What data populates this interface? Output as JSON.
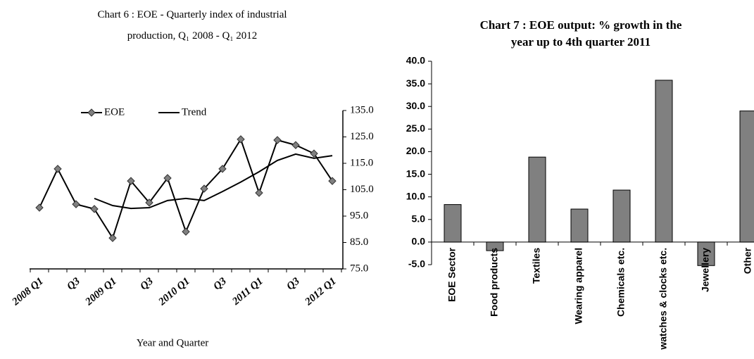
{
  "chart_data": [
    {
      "type": "line",
      "title": "Chart 6 : EOE - Quarterly index of industrial production, Q₁ 2008 - Q₁ 2012",
      "x_label": "Year and Quarter",
      "categories": [
        "2008 Q1",
        null,
        "Q3",
        null,
        "2009 Q1",
        null,
        "Q3",
        null,
        "2010 Q1",
        null,
        "Q3",
        null,
        "2011 Q1",
        null,
        "Q3",
        null,
        "2012 Q1"
      ],
      "series": [
        {
          "name": "EOE",
          "color": "#000000",
          "marker": "diamond",
          "values": [
            98.2,
            112.9,
            99.5,
            97.7,
            86.7,
            108.3,
            100.1,
            109.4,
            89.1,
            105.4,
            112.9,
            124.1,
            103.8,
            123.8,
            121.9,
            118.7,
            108.3
          ]
        },
        {
          "name": "Trend",
          "color": "#000000",
          "values": [
            null,
            null,
            null,
            101.7,
            99.0,
            97.9,
            98.2,
            100.9,
            101.7,
            100.9,
            104.3,
            107.9,
            111.8,
            116.1,
            118.5,
            116.9,
            117.9
          ]
        }
      ],
      "ylim": [
        75,
        135
      ],
      "yticks": [
        {
          "value": 75,
          "label": "75.0"
        },
        {
          "value": 85,
          "label": "85.0"
        },
        {
          "value": 95,
          "label": "95.0"
        },
        {
          "value": 105,
          "label": "105.0"
        },
        {
          "value": 115,
          "label": "115.0"
        },
        {
          "value": 125,
          "label": "125.0"
        },
        {
          "value": 135,
          "label": "135.0"
        }
      ],
      "y_axis_side": "right",
      "legend": "upper left",
      "grid": false
    },
    {
      "type": "bar",
      "title": "Chart 7 : EOE output: % growth in the year up to 4th quarter 2011",
      "categories": [
        "EOE Sector",
        "Food products",
        "Textiles",
        "Wearing apparel",
        "Chemicals etc.",
        "watches & clocks etc.",
        "Jewellery",
        "Other"
      ],
      "values": [
        8.3,
        -1.9,
        18.8,
        7.3,
        11.5,
        35.8,
        -5.2,
        29.0
      ],
      "color": "#808080",
      "ylim": [
        -5,
        40
      ],
      "yticks": [
        {
          "value": -5,
          "label": "-5.0"
        },
        {
          "value": 0,
          "label": "0.0"
        },
        {
          "value": 5,
          "label": "5.0"
        },
        {
          "value": 10,
          "label": "10.0"
        },
        {
          "value": 15,
          "label": "15.0"
        },
        {
          "value": 20,
          "label": "20.0"
        },
        {
          "value": 25,
          "label": "25.0"
        },
        {
          "value": 30,
          "label": "30.0"
        },
        {
          "value": 35,
          "label": "35.0"
        },
        {
          "value": 40,
          "label": "40.0"
        }
      ],
      "grid": false
    }
  ]
}
